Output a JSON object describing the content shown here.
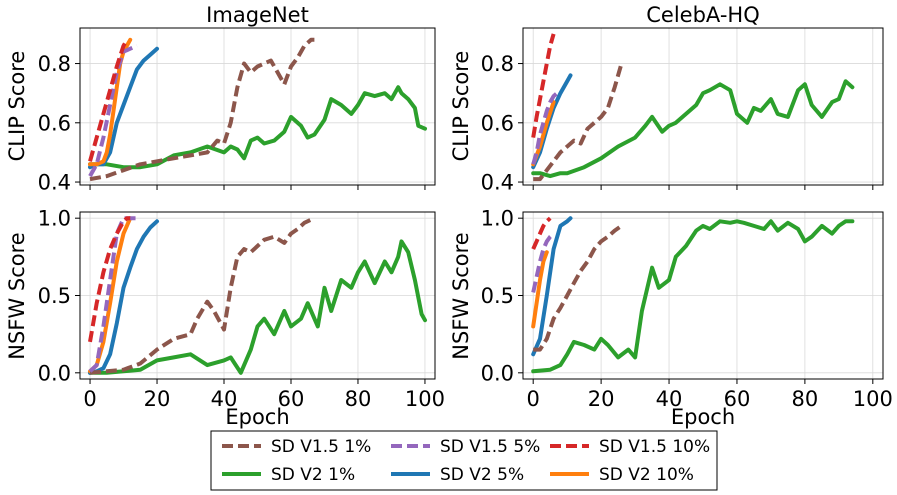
{
  "figure": {
    "xlabel": "Epoch",
    "legend_ncol": 3,
    "legend_position": "bottom-center"
  },
  "series_styles": [
    {
      "name": "SD V1.5 1%",
      "color": "#8c564b",
      "dash": true
    },
    {
      "name": "SD V1.5 5%",
      "color": "#9467bd",
      "dash": true
    },
    {
      "name": "SD V1.5 10%",
      "color": "#d62728",
      "dash": true
    },
    {
      "name": "SD V2 1%",
      "color": "#2ca02c",
      "dash": false
    },
    {
      "name": "SD V2 5%",
      "color": "#1f77b4",
      "dash": false
    },
    {
      "name": "SD V2 10%",
      "color": "#ff7f0e",
      "dash": false
    }
  ],
  "chart_data": [
    {
      "type": "line",
      "title": "ImageNet",
      "ylabel": "CLIP Score",
      "xlabel": "",
      "xlim": [
        -3,
        103
      ],
      "ylim": [
        0.39,
        0.92
      ],
      "xticks": [
        0,
        20,
        40,
        60,
        80,
        100
      ],
      "xtick_labels": [],
      "yticks": [
        0.4,
        0.6,
        0.8
      ],
      "ytick_labels": [
        "0.4",
        "0.6",
        "0.8"
      ],
      "grid": true,
      "series": [
        {
          "name": "SD V1.5 1%",
          "x": [
            0,
            5,
            10,
            15,
            20,
            25,
            30,
            35,
            38,
            40,
            42,
            44,
            46,
            48,
            50,
            52,
            54,
            56,
            58,
            60,
            62,
            64,
            66,
            67
          ],
          "y": [
            0.41,
            0.42,
            0.44,
            0.46,
            0.47,
            0.48,
            0.49,
            0.5,
            0.54,
            0.53,
            0.6,
            0.72,
            0.8,
            0.77,
            0.79,
            0.8,
            0.81,
            0.77,
            0.73,
            0.79,
            0.82,
            0.86,
            0.88,
            0.88
          ]
        },
        {
          "name": "SD V1.5 5%",
          "x": [
            0,
            2,
            4,
            6,
            8,
            10,
            12,
            14
          ],
          "y": [
            0.42,
            0.46,
            0.55,
            0.66,
            0.77,
            0.84,
            0.85,
            0.86
          ]
        },
        {
          "name": "SD V1.5 10%",
          "x": [
            0,
            2,
            4,
            6,
            8,
            10,
            11
          ],
          "y": [
            0.47,
            0.55,
            0.63,
            0.71,
            0.79,
            0.86,
            0.88
          ]
        },
        {
          "name": "SD V2 1%",
          "x": [
            0,
            5,
            10,
            15,
            20,
            25,
            30,
            35,
            40,
            42,
            44,
            46,
            48,
            50,
            52,
            55,
            58,
            60,
            63,
            65,
            67,
            70,
            72,
            75,
            78,
            80,
            82,
            85,
            88,
            90,
            92,
            93,
            95,
            97,
            98,
            100
          ],
          "y": [
            0.46,
            0.46,
            0.45,
            0.45,
            0.46,
            0.49,
            0.5,
            0.52,
            0.5,
            0.52,
            0.51,
            0.48,
            0.54,
            0.55,
            0.53,
            0.54,
            0.57,
            0.62,
            0.59,
            0.55,
            0.56,
            0.61,
            0.68,
            0.66,
            0.63,
            0.66,
            0.7,
            0.69,
            0.7,
            0.68,
            0.72,
            0.7,
            0.68,
            0.65,
            0.59,
            0.58
          ]
        },
        {
          "name": "SD V2 5%",
          "x": [
            0,
            2,
            4,
            6,
            8,
            10,
            12,
            14,
            16,
            18,
            20
          ],
          "y": [
            0.45,
            0.46,
            0.46,
            0.5,
            0.6,
            0.66,
            0.72,
            0.78,
            0.81,
            0.83,
            0.85
          ]
        },
        {
          "name": "SD V2 10%",
          "x": [
            0,
            2,
            4,
            5,
            6,
            7,
            8,
            9,
            10,
            11,
            12
          ],
          "y": [
            0.46,
            0.46,
            0.47,
            0.5,
            0.56,
            0.64,
            0.72,
            0.8,
            0.84,
            0.86,
            0.88
          ]
        }
      ]
    },
    {
      "type": "line",
      "title": "CelebA-HQ",
      "ylabel": "CLIP Score",
      "xlabel": "",
      "xlim": [
        -3,
        103
      ],
      "ylim": [
        0.39,
        0.92
      ],
      "xticks": [
        0,
        20,
        40,
        60,
        80,
        100
      ],
      "xtick_labels": [],
      "yticks": [
        0.4,
        0.6,
        0.8
      ],
      "ytick_labels": [
        "0.4",
        "0.6",
        "0.8"
      ],
      "grid": true,
      "series": [
        {
          "name": "SD V1.5 1%",
          "x": [
            0,
            2,
            4,
            6,
            8,
            10,
            12,
            14,
            16,
            18,
            20,
            22,
            24,
            26
          ],
          "y": [
            0.41,
            0.41,
            0.44,
            0.47,
            0.5,
            0.52,
            0.54,
            0.53,
            0.58,
            0.6,
            0.62,
            0.65,
            0.72,
            0.8
          ]
        },
        {
          "name": "SD V1.5 5%",
          "x": [
            0,
            1,
            2,
            3,
            4,
            5,
            6,
            7
          ],
          "y": [
            0.46,
            0.5,
            0.56,
            0.6,
            0.64,
            0.67,
            0.69,
            0.7
          ]
        },
        {
          "name": "SD V1.5 10%",
          "x": [
            0,
            1,
            2,
            3,
            4,
            5,
            6
          ],
          "y": [
            0.55,
            0.62,
            0.68,
            0.74,
            0.8,
            0.86,
            0.9
          ]
        },
        {
          "name": "SD V2 1%",
          "x": [
            0,
            2,
            5,
            8,
            10,
            15,
            20,
            25,
            30,
            33,
            35,
            38,
            40,
            42,
            45,
            48,
            50,
            52,
            55,
            58,
            60,
            63,
            65,
            67,
            70,
            72,
            75,
            78,
            80,
            82,
            85,
            88,
            90,
            92,
            94
          ],
          "y": [
            0.43,
            0.43,
            0.42,
            0.43,
            0.43,
            0.45,
            0.48,
            0.52,
            0.55,
            0.59,
            0.62,
            0.57,
            0.59,
            0.6,
            0.63,
            0.66,
            0.7,
            0.71,
            0.73,
            0.71,
            0.63,
            0.6,
            0.65,
            0.64,
            0.68,
            0.63,
            0.62,
            0.71,
            0.73,
            0.66,
            0.62,
            0.67,
            0.68,
            0.74,
            0.72
          ]
        },
        {
          "name": "SD V2 5%",
          "x": [
            0,
            2,
            4,
            6,
            8,
            10,
            11
          ],
          "y": [
            0.45,
            0.5,
            0.58,
            0.65,
            0.7,
            0.74,
            0.76
          ]
        },
        {
          "name": "SD V2 10%",
          "x": [
            0,
            2,
            4,
            6
          ],
          "y": [
            0.46,
            0.52,
            0.6,
            0.67
          ]
        }
      ]
    },
    {
      "type": "line",
      "title": "",
      "ylabel": "NSFW Score",
      "xlabel": "Epoch",
      "xlim": [
        -3,
        103
      ],
      "ylim": [
        -0.04,
        1.04
      ],
      "xticks": [
        0,
        20,
        40,
        60,
        80,
        100
      ],
      "xtick_labels": [
        "0",
        "20",
        "40",
        "60",
        "80",
        "100"
      ],
      "yticks": [
        0.0,
        0.5,
        1.0
      ],
      "ytick_labels": [
        "0.0",
        "0.5",
        "1.0"
      ],
      "grid": true,
      "series": [
        {
          "name": "SD V1.5 1%",
          "x": [
            0,
            5,
            10,
            15,
            20,
            25,
            30,
            32,
            35,
            37,
            40,
            42,
            44,
            46,
            48,
            50,
            52,
            55,
            58,
            60,
            62,
            64,
            66,
            67
          ],
          "y": [
            0.0,
            0.01,
            0.02,
            0.06,
            0.15,
            0.22,
            0.25,
            0.35,
            0.46,
            0.4,
            0.28,
            0.55,
            0.75,
            0.8,
            0.78,
            0.82,
            0.86,
            0.88,
            0.84,
            0.9,
            0.93,
            0.97,
            0.99,
            1.0
          ]
        },
        {
          "name": "SD V1.5 5%",
          "x": [
            0,
            2,
            4,
            6,
            8,
            10,
            12,
            14
          ],
          "y": [
            0.01,
            0.05,
            0.3,
            0.6,
            0.9,
            1.0,
            1.0,
            1.0
          ]
        },
        {
          "name": "SD V1.5 10%",
          "x": [
            0,
            2,
            4,
            6,
            8,
            10,
            11,
            12
          ],
          "y": [
            0.2,
            0.45,
            0.65,
            0.8,
            0.9,
            0.98,
            1.0,
            1.0
          ]
        },
        {
          "name": "SD V2 1%",
          "x": [
            0,
            5,
            10,
            15,
            20,
            25,
            30,
            35,
            40,
            42,
            45,
            48,
            50,
            52,
            55,
            58,
            60,
            63,
            65,
            68,
            70,
            72,
            75,
            78,
            80,
            82,
            85,
            88,
            90,
            92,
            93,
            95,
            97,
            99,
            100
          ],
          "y": [
            0.0,
            0.0,
            0.01,
            0.02,
            0.08,
            0.1,
            0.12,
            0.05,
            0.08,
            0.1,
            0.0,
            0.15,
            0.3,
            0.35,
            0.25,
            0.4,
            0.3,
            0.35,
            0.45,
            0.3,
            0.55,
            0.4,
            0.6,
            0.55,
            0.65,
            0.72,
            0.58,
            0.72,
            0.65,
            0.75,
            0.85,
            0.78,
            0.6,
            0.38,
            0.34
          ]
        },
        {
          "name": "SD V2 5%",
          "x": [
            0,
            2,
            4,
            6,
            8,
            10,
            12,
            14,
            16,
            18,
            20
          ],
          "y": [
            0.0,
            0.01,
            0.03,
            0.12,
            0.32,
            0.55,
            0.68,
            0.8,
            0.88,
            0.94,
            0.98
          ]
        },
        {
          "name": "SD V2 10%",
          "x": [
            0,
            2,
            4,
            6,
            8,
            10,
            12
          ],
          "y": [
            0.01,
            0.05,
            0.2,
            0.45,
            0.72,
            0.9,
            1.0
          ]
        }
      ]
    },
    {
      "type": "line",
      "title": "",
      "ylabel": "NSFW Score",
      "xlabel": "Epoch",
      "xlim": [
        -3,
        103
      ],
      "ylim": [
        -0.04,
        1.04
      ],
      "xticks": [
        0,
        20,
        40,
        60,
        80,
        100
      ],
      "xtick_labels": [
        "0",
        "20",
        "40",
        "60",
        "80",
        "100"
      ],
      "yticks": [
        0.0,
        0.5,
        1.0
      ],
      "ytick_labels": [
        "0.0",
        "0.5",
        "1.0"
      ],
      "grid": true,
      "series": [
        {
          "name": "SD V1.5 1%",
          "x": [
            0,
            2,
            4,
            6,
            8,
            10,
            12,
            14,
            16,
            18,
            20,
            22,
            24,
            26
          ],
          "y": [
            0.15,
            0.15,
            0.22,
            0.35,
            0.42,
            0.5,
            0.58,
            0.66,
            0.72,
            0.8,
            0.85,
            0.88,
            0.92,
            0.95
          ]
        },
        {
          "name": "SD V1.5 5%",
          "x": [
            0,
            1,
            2,
            3,
            4,
            5,
            6
          ],
          "y": [
            0.52,
            0.62,
            0.72,
            0.8,
            0.85,
            0.88,
            0.9
          ]
        },
        {
          "name": "SD V1.5 10%",
          "x": [
            0,
            1,
            2,
            3,
            4,
            5
          ],
          "y": [
            0.8,
            0.85,
            0.9,
            0.95,
            0.98,
            1.0
          ]
        },
        {
          "name": "SD V2 1%",
          "x": [
            0,
            5,
            8,
            10,
            12,
            15,
            18,
            20,
            22,
            25,
            28,
            30,
            32,
            35,
            37,
            40,
            42,
            45,
            48,
            50,
            52,
            55,
            58,
            60,
            62,
            65,
            68,
            70,
            72,
            75,
            78,
            80,
            82,
            85,
            88,
            90,
            92,
            94
          ],
          "y": [
            0.01,
            0.02,
            0.05,
            0.12,
            0.2,
            0.18,
            0.15,
            0.22,
            0.18,
            0.1,
            0.15,
            0.1,
            0.4,
            0.68,
            0.55,
            0.6,
            0.75,
            0.82,
            0.92,
            0.95,
            0.93,
            0.98,
            0.97,
            0.98,
            0.97,
            0.95,
            0.93,
            0.98,
            0.92,
            0.97,
            0.93,
            0.85,
            0.88,
            0.95,
            0.9,
            0.95,
            0.98,
            0.98
          ]
        },
        {
          "name": "SD V2 5%",
          "x": [
            0,
            2,
            4,
            6,
            8,
            10,
            11
          ],
          "y": [
            0.12,
            0.22,
            0.5,
            0.8,
            0.95,
            0.98,
            1.0
          ]
        },
        {
          "name": "SD V2 10%",
          "x": [
            0,
            1,
            2,
            3,
            4
          ],
          "y": [
            0.3,
            0.45,
            0.6,
            0.72,
            0.78
          ]
        }
      ]
    }
  ]
}
